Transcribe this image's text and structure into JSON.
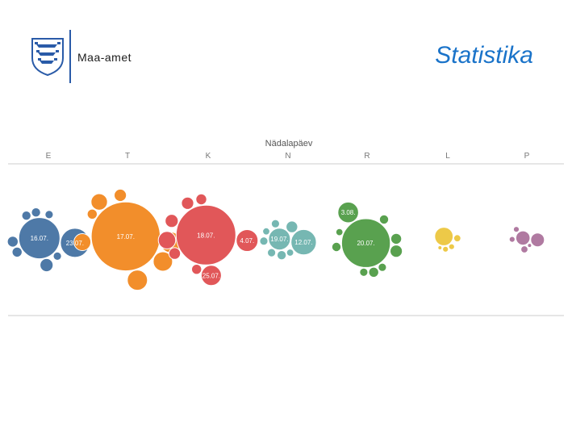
{
  "header": {
    "logo_text": "Maa-amet",
    "title": "Statistika"
  },
  "colors": {
    "title": "#1a73c9",
    "logo": "#2a5ba8"
  },
  "chart_data": {
    "type": "packed-bubble",
    "title": "Nädalapäev",
    "categories": [
      "E",
      "T",
      "K",
      "N",
      "R",
      "L",
      "P"
    ],
    "series": [
      {
        "day": "E",
        "color": "#4e79a7",
        "bubbles": [
          {
            "label": "16.07.",
            "value": 100
          },
          {
            "label": "23.07.",
            "value": 50
          },
          {
            "value": 10
          },
          {
            "value": 7
          },
          {
            "value": 6
          },
          {
            "value": 5
          },
          {
            "value": 5
          },
          {
            "value": 4
          },
          {
            "value": 4
          }
        ]
      },
      {
        "day": "T",
        "color": "#f28e2b",
        "bubbles": [
          {
            "label": "17.07.",
            "value": 280
          },
          {
            "value": 25
          },
          {
            "value": 24
          },
          {
            "value": 22
          },
          {
            "value": 17
          },
          {
            "value": 16
          },
          {
            "value": 9
          },
          {
            "value": 6
          }
        ]
      },
      {
        "day": "K",
        "color": "#e15759",
        "bubbles": [
          {
            "label": "18.07.",
            "value": 210
          },
          {
            "label": "4.07.",
            "value": 28
          },
          {
            "label": "25.07.",
            "value": 24
          },
          {
            "value": 18
          },
          {
            "value": 10
          },
          {
            "value": 9
          },
          {
            "value": 8
          },
          {
            "value": 7
          },
          {
            "value": 6
          }
        ]
      },
      {
        "day": "N",
        "color": "#76b7b2",
        "bubbles": [
          {
            "label": "19.07.",
            "value": 28
          },
          {
            "label": "12.07.",
            "value": 38
          },
          {
            "value": 8
          },
          {
            "value": 5
          },
          {
            "value": 4
          },
          {
            "value": 4
          },
          {
            "value": 4
          },
          {
            "value": 3
          },
          {
            "value": 3
          }
        ]
      },
      {
        "day": "R",
        "color": "#59a14f",
        "bubbles": [
          {
            "label": "20.07.",
            "value": 140
          },
          {
            "label": "3.08.",
            "value": 25
          },
          {
            "value": 9
          },
          {
            "value": 7
          },
          {
            "value": 6
          },
          {
            "value": 5
          },
          {
            "value": 5
          },
          {
            "value": 4
          },
          {
            "value": 4
          },
          {
            "value": 3
          }
        ]
      },
      {
        "day": "L",
        "color": "#edc948",
        "bubbles": [
          {
            "value": 20
          },
          {
            "value": 3
          },
          {
            "value": 2
          },
          {
            "value": 2
          },
          {
            "value": 1
          }
        ]
      },
      {
        "day": "P",
        "color": "#b07aa1",
        "bubbles": [
          {
            "value": 12
          },
          {
            "value": 11
          },
          {
            "value": 3
          },
          {
            "value": 2
          },
          {
            "value": 2
          },
          {
            "value": 1
          }
        ]
      }
    ]
  }
}
